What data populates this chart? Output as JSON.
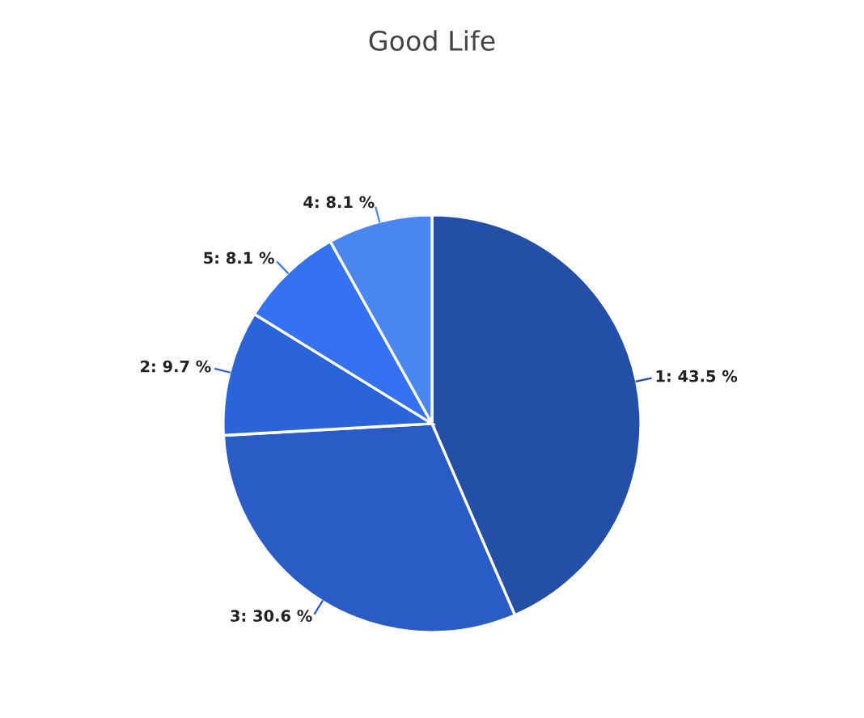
{
  "chart_data": {
    "type": "pie",
    "title": "Good Life",
    "categories": [
      null,
      null,
      null,
      null,
      null
    ],
    "values": [
      43.5,
      30.6,
      9.7,
      8.1,
      8.1
    ],
    "value_labels": [
      "1: 43.5 %",
      "3: 30.6 %",
      "2: 9.7 %",
      "5: 8.1 %",
      "4: 8.1 %"
    ],
    "colors": [
      "#2350a6",
      "#2a5cc6",
      "#2b63d9",
      "#3472f2",
      "#4a86f0"
    ],
    "legend": false
  }
}
